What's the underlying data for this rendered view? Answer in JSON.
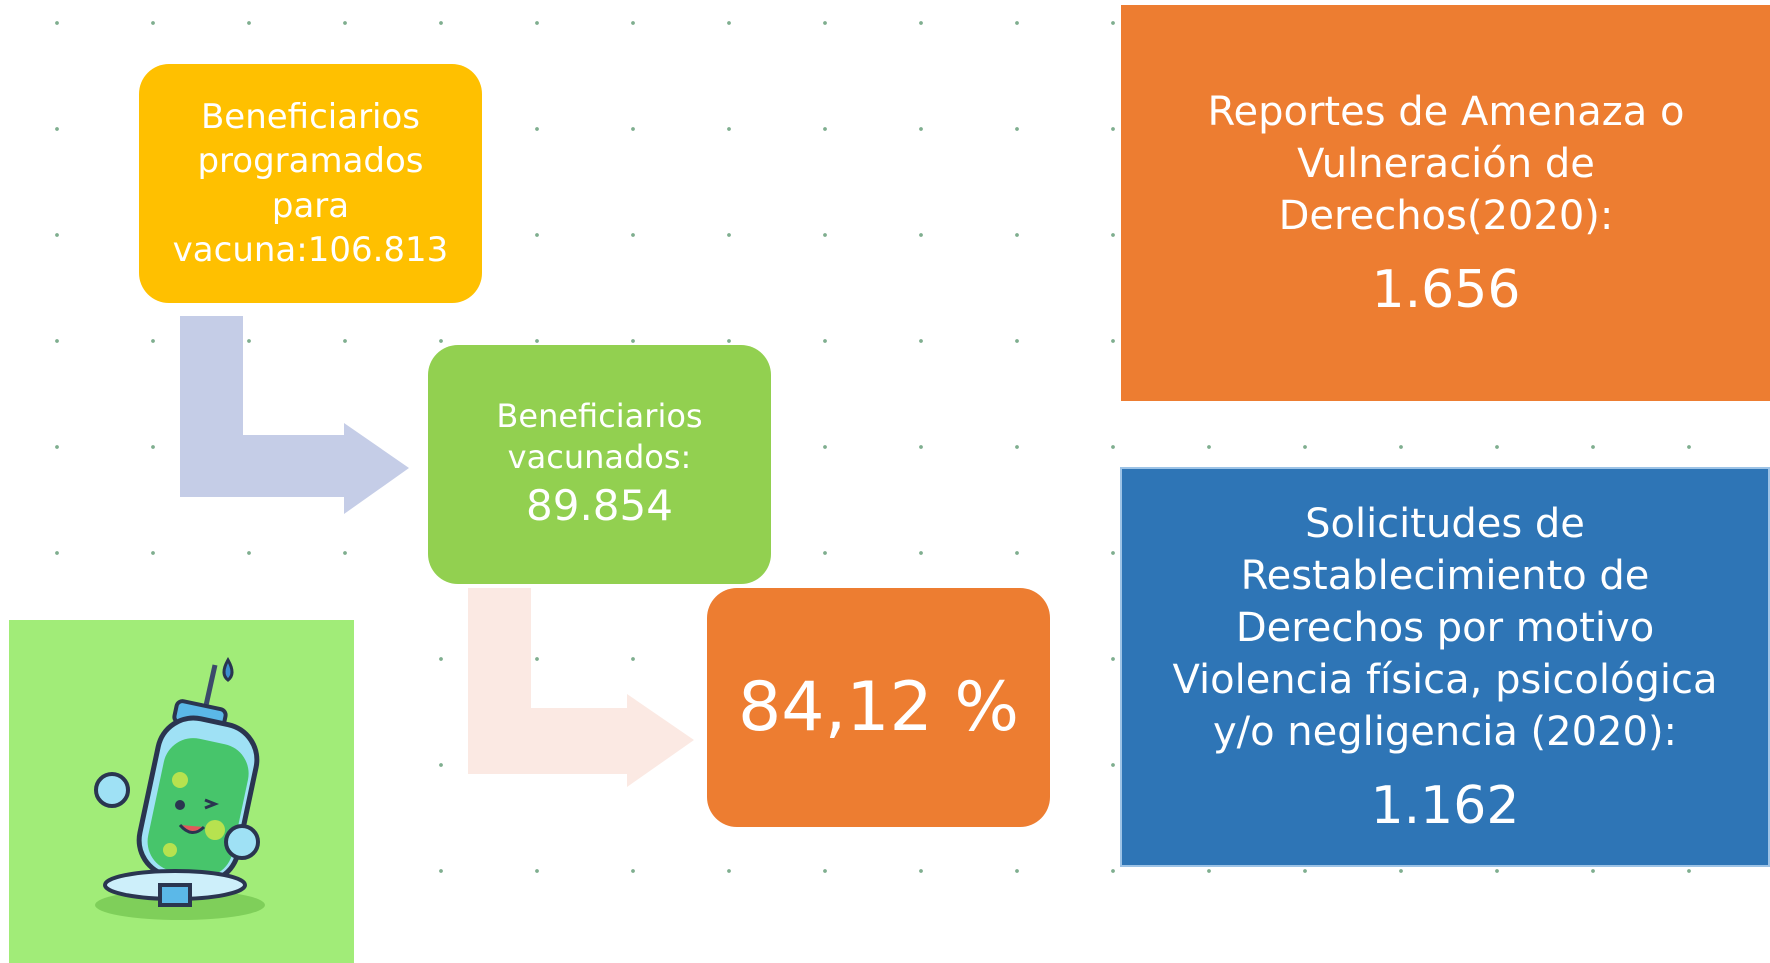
{
  "flow": {
    "steps": [
      {
        "label": "Beneficiarios programados para vacuna:106.813"
      },
      {
        "label": "Beneficiarios vacunados:",
        "value": "89.854"
      },
      {
        "label": "84,12 %"
      }
    ]
  },
  "cards": [
    {
      "label": "Reportes de Amenaza o Vulneración de Derechos(2020):",
      "value": "1.656"
    },
    {
      "label": "Solicitudes de Restablecimiento de Derechos por motivo Violencia física, psicológica y/o negligencia (2020):",
      "value": "1.162"
    }
  ]
}
